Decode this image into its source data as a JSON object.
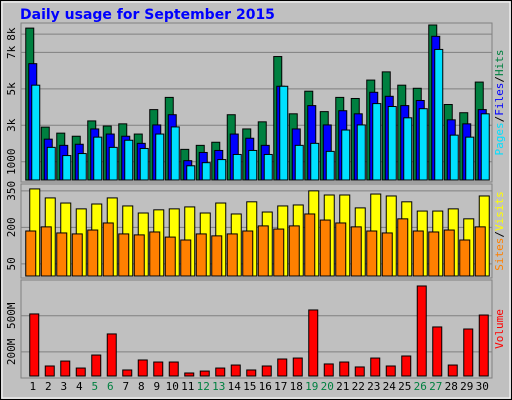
{
  "chart_data": [
    {
      "type": "bar",
      "title": "Daily usage for September 2015",
      "ylim": [
        0,
        8500
      ],
      "yticks": [
        1000,
        {
          "value": 3000,
          "label": "3k"
        },
        {
          "value": 5000,
          "label": "5k"
        },
        {
          "value": 7000,
          "label": "7k"
        },
        {
          "value": 8000,
          "label": "8k"
        }
      ],
      "grid": true,
      "legend_separator": "/",
      "series": [
        {
          "name": "Hits",
          "color": "#008040",
          "values": [
            8330,
            2900,
            2570,
            2400,
            3240,
            2960,
            3080,
            2520,
            3860,
            4530,
            1680,
            1900,
            2070,
            3580,
            2800,
            3190,
            6770,
            3630,
            4870,
            3750,
            4530,
            4470,
            5480,
            5930,
            5200,
            5030,
            8500,
            4140,
            3690,
            5370
          ]
        },
        {
          "name": "Files",
          "color": "#0000ff",
          "values": [
            6380,
            2240,
            1900,
            1960,
            2800,
            2520,
            2400,
            2010,
            3020,
            3580,
            1060,
            1510,
            1620,
            2520,
            2290,
            1900,
            5140,
            2800,
            4080,
            3020,
            3800,
            3630,
            4810,
            4590,
            4080,
            4360,
            7880,
            3300,
            3080,
            3860
          ]
        },
        {
          "name": "Pages",
          "color": "#00e0ff",
          "values": [
            5200,
            1790,
            1340,
            1450,
            2350,
            1790,
            2180,
            1730,
            2520,
            2910,
            780,
            950,
            1120,
            1400,
            1620,
            1400,
            5140,
            1900,
            2010,
            1570,
            2740,
            3020,
            4190,
            4030,
            3410,
            3910,
            7160,
            2460,
            2350,
            3630
          ]
        }
      ]
    },
    {
      "type": "bar",
      "ylim": [
        0,
        370
      ],
      "yticks": [
        50,
        200,
        350
      ],
      "grid": true,
      "legend_separator": "/",
      "series": [
        {
          "name": "Visits",
          "color": "#ffff00",
          "values": [
            358,
            321,
            300,
            276,
            296,
            321,
            288,
            259,
            272,
            276,
            284,
            259,
            300,
            255,
            305,
            263,
            288,
            292,
            350,
            333,
            333,
            280,
            337,
            329,
            305,
            267,
            267,
            276,
            235,
            329
          ]
        },
        {
          "name": "Sites",
          "color": "#ff8000",
          "values": [
            185,
            202,
            177,
            173,
            189,
            218,
            173,
            169,
            181,
            160,
            148,
            173,
            165,
            173,
            185,
            206,
            193,
            206,
            255,
            230,
            218,
            202,
            185,
            177,
            235,
            185,
            181,
            189,
            148,
            202
          ]
        }
      ]
    },
    {
      "type": "bar",
      "ylim": [
        0,
        780
      ],
      "yticks": [
        {
          "value": 200,
          "label": "200M"
        },
        {
          "value": 500,
          "label": "500M"
        }
      ],
      "grid": true,
      "categories": [
        "1",
        "2",
        "3",
        "4",
        "5",
        "6",
        "7",
        "8",
        "9",
        "10",
        "11",
        "12",
        "13",
        "14",
        "15",
        "16",
        "17",
        "18",
        "19",
        "20",
        "21",
        "22",
        "23",
        "24",
        "25",
        "26",
        "27",
        "28",
        "29",
        "30"
      ],
      "category_colors": [
        "#000000",
        "#000000",
        "#000000",
        "#000000",
        "#008040",
        "#008040",
        "#000000",
        "#000000",
        "#000000",
        "#000000",
        "#000000",
        "#008040",
        "#008040",
        "#000000",
        "#000000",
        "#000000",
        "#000000",
        "#000000",
        "#008040",
        "#008040",
        "#000000",
        "#000000",
        "#000000",
        "#000000",
        "#000000",
        "#008040",
        "#008040",
        "#000000",
        "#000000",
        "#000000"
      ],
      "series": [
        {
          "name": "Volume",
          "color": "#ff0000",
          "values": [
            515,
            83,
            124,
            66,
            174,
            349,
            50,
            133,
            116,
            116,
            25,
            41,
            66,
            91,
            50,
            83,
            141,
            149,
            548,
            100,
            116,
            75,
            149,
            83,
            166,
            747,
            407,
            91,
            390,
            506
          ]
        }
      ]
    }
  ]
}
